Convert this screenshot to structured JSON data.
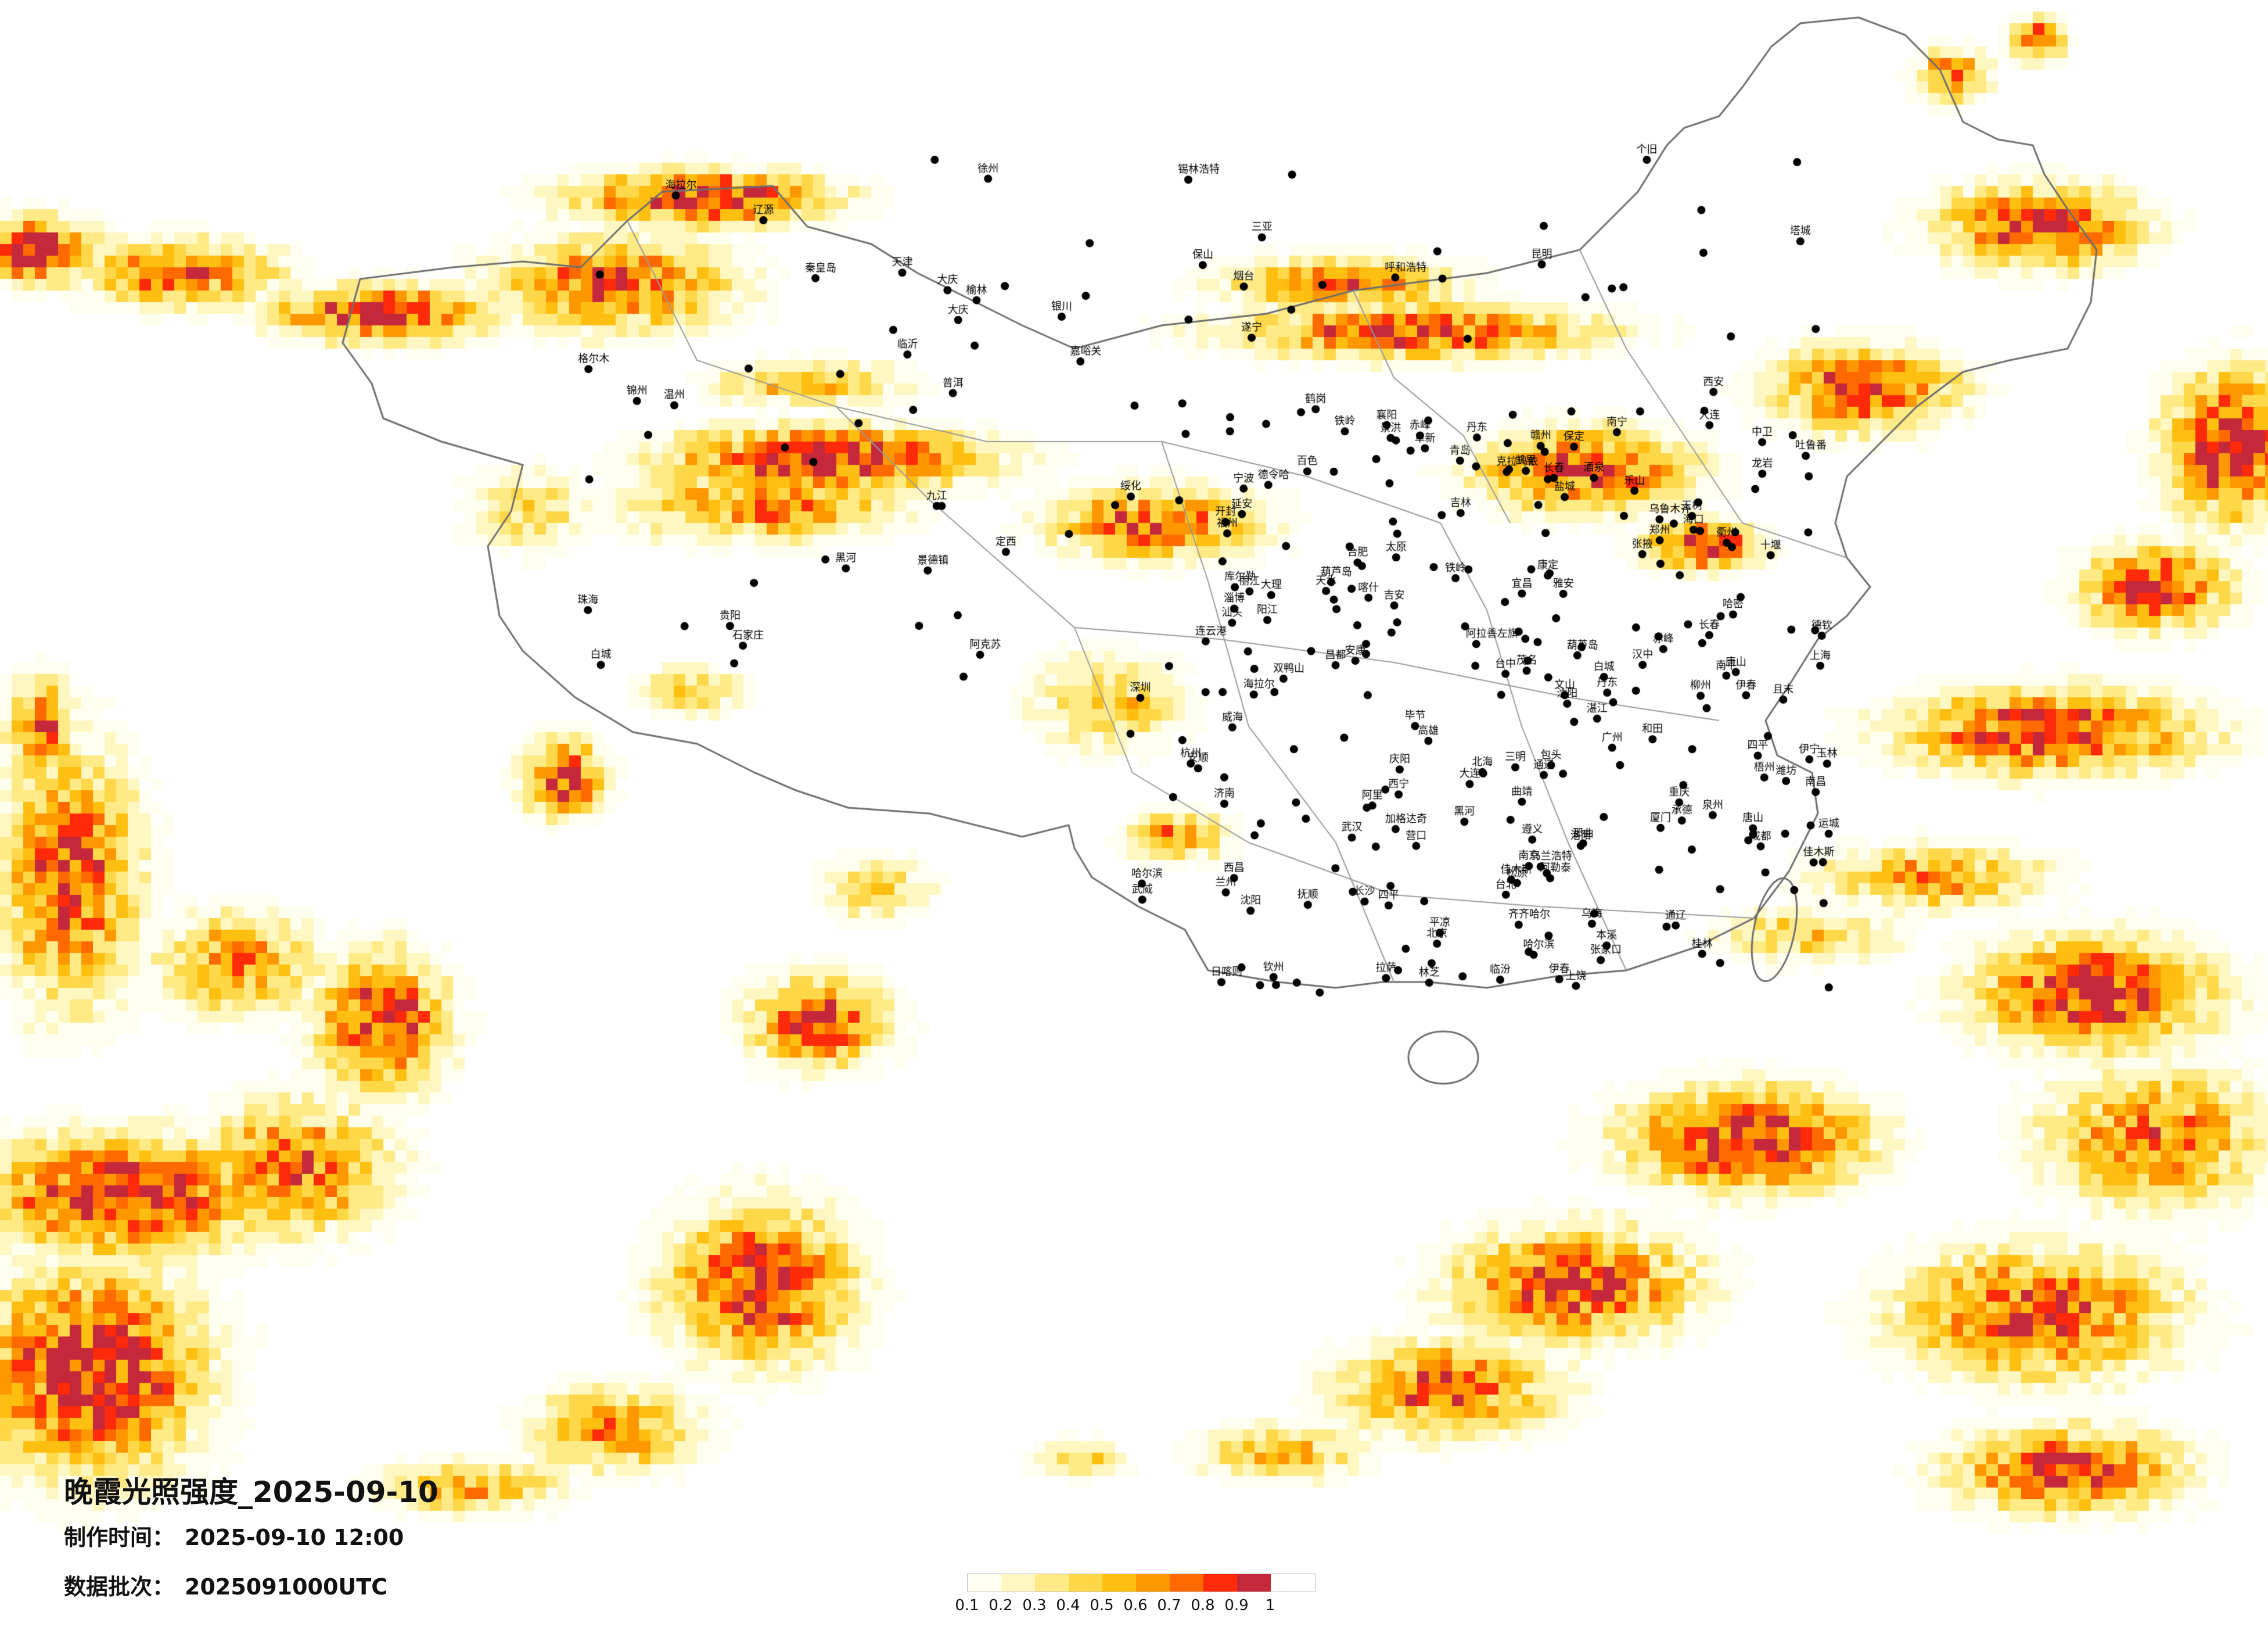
{
  "title": "晚霞光照强度_2025-09-10",
  "made_time": {
    "label": "制作时间：",
    "value": "2025-09-10 12:00"
  },
  "data_batch": {
    "label": "数据批次：",
    "value": "2025091000UTC"
  },
  "legend": {
    "ticks": [
      "0.1",
      "0.2",
      "0.3",
      "0.4",
      "0.5",
      "0.6",
      "0.7",
      "0.8",
      "0.9",
      "1"
    ],
    "colors": [
      "#fffff0",
      "#fff7c2",
      "#ffea86",
      "#ffd84a",
      "#ffbf10",
      "#ff9800",
      "#ff6a00",
      "#ff2a0a",
      "#c4283a"
    ]
  },
  "city_labels": [
    "海拉尔",
    "加格达奇",
    "黑河",
    "齐齐哈尔",
    "伊春",
    "鹤岗",
    "佳木斯",
    "双鸭山",
    "大庆",
    "绥化",
    "哈尔滨",
    "乌兰浩特",
    "白城",
    "松原",
    "长春",
    "吉林",
    "四平",
    "辽源",
    "通辽",
    "锡林浩特",
    "赤峰",
    "阜新",
    "铁岭",
    "抚顺",
    "沈阳",
    "本溪",
    "丹东",
    "营口",
    "大连",
    "锦州",
    "葫芦岛",
    "秦皇岛",
    "唐山",
    "承德",
    "张家口",
    "北京",
    "天津",
    "保定",
    "石家庄",
    "呼和浩特",
    "包头",
    "乌海",
    "阿拉善左旗",
    "银川",
    "中卫",
    "西宁",
    "兰州",
    "嘉峪关",
    "酒泉",
    "张掖",
    "武威",
    "定西",
    "天水",
    "平凉",
    "庆阳",
    "延安",
    "榆林",
    "太原",
    "临汾",
    "运城",
    "郑州",
    "洛阳",
    "开封",
    "济南",
    "青岛",
    "烟台",
    "威海",
    "淄博",
    "潍坊",
    "临沂",
    "徐州",
    "连云港",
    "盐城",
    "南京",
    "合肥",
    "上海",
    "杭州",
    "宁波",
    "温州",
    "南昌",
    "长沙",
    "武汉",
    "宜昌",
    "襄阳",
    "十堰",
    "西安",
    "汉中",
    "安康",
    "成都",
    "重庆",
    "遂宁",
    "乐山",
    "雅安",
    "康定",
    "西昌",
    "昆明",
    "曲靖",
    "大理",
    "丽江",
    "保山",
    "普洱",
    "景洪",
    "个旧",
    "文山",
    "贵阳",
    "遵义",
    "安顺",
    "毕节",
    "凯里",
    "南宁",
    "柳州",
    "桂林",
    "梧州",
    "玉林",
    "北海",
    "钦州",
    "百色",
    "广州",
    "深圳",
    "珠海",
    "汕头",
    "湛江",
    "茂名",
    "阳江",
    "海口",
    "三亚",
    "福州",
    "厦门",
    "泉州",
    "龙岩",
    "三明",
    "南平",
    "赣州",
    "吉安",
    "九江",
    "景德镇",
    "上饶",
    "衢州",
    "台北",
    "台中",
    "高雄",
    "哈密",
    "吐鲁番",
    "乌鲁木齐",
    "克拉玛依",
    "塔城",
    "阿勒泰",
    "伊宁",
    "库尔勒",
    "阿克苏",
    "喀什",
    "和田",
    "且末",
    "格尔木",
    "德令哈",
    "玉树",
    "拉萨",
    "日喀则",
    "林芝",
    "昌都",
    "那曲",
    "阿里",
    "德钦"
  ],
  "labels": {
    "china_outline": "china-border",
    "layer": "evening-glow-intensity-raster"
  }
}
